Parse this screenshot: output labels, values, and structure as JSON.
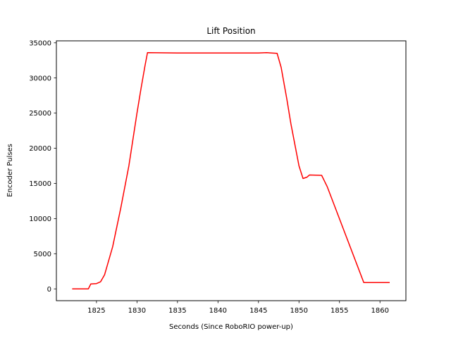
{
  "chart_data": {
    "type": "line",
    "title": "Lift Position",
    "xlabel": "Seconds (Since RoboRIO power-up)",
    "ylabel": "Encoder Pulses",
    "xlim": [
      1820.05,
      1863.2
    ],
    "ylim": [
      -1680,
      35280
    ],
    "xticks": [
      1825,
      1830,
      1835,
      1840,
      1845,
      1850,
      1855,
      1860
    ],
    "yticks": [
      0,
      5000,
      10000,
      15000,
      20000,
      25000,
      30000,
      35000
    ],
    "grid": false,
    "series": [
      {
        "color": "#ff0000",
        "points": [
          [
            1822.0,
            0
          ],
          [
            1824.0,
            0
          ],
          [
            1824.3,
            700
          ],
          [
            1825.0,
            750
          ],
          [
            1825.5,
            1000
          ],
          [
            1826.0,
            2000
          ],
          [
            1826.5,
            4000
          ],
          [
            1827.0,
            6000
          ],
          [
            1828.0,
            11500
          ],
          [
            1829.0,
            17500
          ],
          [
            1830.0,
            25000
          ],
          [
            1830.5,
            28500
          ],
          [
            1831.0,
            31800
          ],
          [
            1831.3,
            33600
          ],
          [
            1835.0,
            33550
          ],
          [
            1840.0,
            33550
          ],
          [
            1845.0,
            33550
          ],
          [
            1846.0,
            33600
          ],
          [
            1847.3,
            33500
          ],
          [
            1847.8,
            31500
          ],
          [
            1848.5,
            27000
          ],
          [
            1849.0,
            23500
          ],
          [
            1849.5,
            20500
          ],
          [
            1850.0,
            17500
          ],
          [
            1850.5,
            15700
          ],
          [
            1851.0,
            15900
          ],
          [
            1851.3,
            16200
          ],
          [
            1852.8,
            16150
          ],
          [
            1853.5,
            14500
          ],
          [
            1858.0,
            900
          ],
          [
            1861.2,
            900
          ]
        ]
      }
    ]
  }
}
